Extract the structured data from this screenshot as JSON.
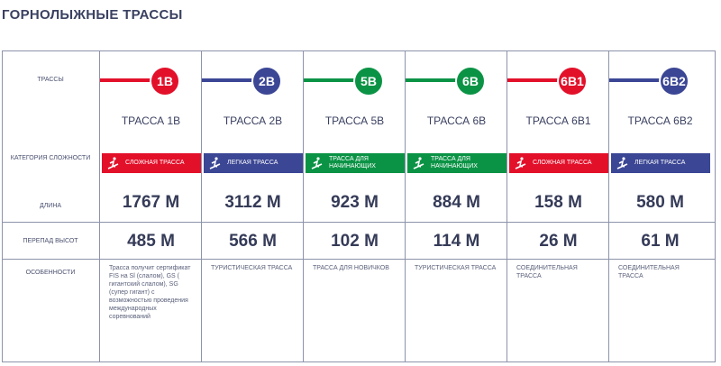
{
  "title": "ГОРНОЛЫЖНЫЕ ТРАССЫ",
  "row_labels": {
    "routes": "ТРАССЫ",
    "category": "КАТЕГОРИЯ СЛОЖНОСТИ",
    "length": "ДЛИНА",
    "drop": "ПЕРЕПАД ВЫСОТ",
    "features": "ОСОБЕННОСТИ"
  },
  "colors": {
    "red": "#e3102a",
    "blue": "#3b4695",
    "green": "#0b9345"
  },
  "routes": [
    {
      "code": "1В",
      "name": "ТРАССА 1В",
      "color": "#e3102a",
      "category": "СЛОЖНАЯ ТРАССА",
      "length": "1767 М",
      "drop": "485 М",
      "features": "Трасса получит сертификат FIS на Sl (слалом), GS ( гигантский слалом), SG (супер гигант) с возможностью проведения международных соревнований"
    },
    {
      "code": "2В",
      "name": "ТРАССА 2В",
      "color": "#3b4695",
      "category": "ЛЕГКАЯ ТРАССА",
      "length": "3112 М",
      "drop": "566 М",
      "features": "ТУРИСТИЧЕСКАЯ ТРАССА"
    },
    {
      "code": "5В",
      "name": "ТРАССА 5В",
      "color": "#0b9345",
      "category": "ТРАССА ДЛЯ НАЧИНАЮЩИХ",
      "length": "923 М",
      "drop": "102 М",
      "features": "ТРАССА ДЛЯ НОВИЧКОВ"
    },
    {
      "code": "6В",
      "name": "ТРАССА 6В",
      "color": "#0b9345",
      "category": "ТРАССА ДЛЯ НАЧИНАЮЩИХ",
      "length": "884 М",
      "drop": "114 М",
      "features": "ТУРИСТИЧЕСКАЯ ТРАССА"
    },
    {
      "code": "6В1",
      "name": "ТРАССА 6В1",
      "color": "#e3102a",
      "category": "СЛОЖНАЯ ТРАССА",
      "length": "158 М",
      "drop": "26 М",
      "features": "СОЕДИНИТЕЛЬНАЯ ТРАССА"
    },
    {
      "code": "6В2",
      "name": "ТРАССА 6В2",
      "color": "#3b4695",
      "category": "ЛЕГКАЯ ТРАССА",
      "length": "580 М",
      "drop": "61 М",
      "features": "СОЕДИНИТЕЛЬНАЯ ТРАССА"
    }
  ]
}
